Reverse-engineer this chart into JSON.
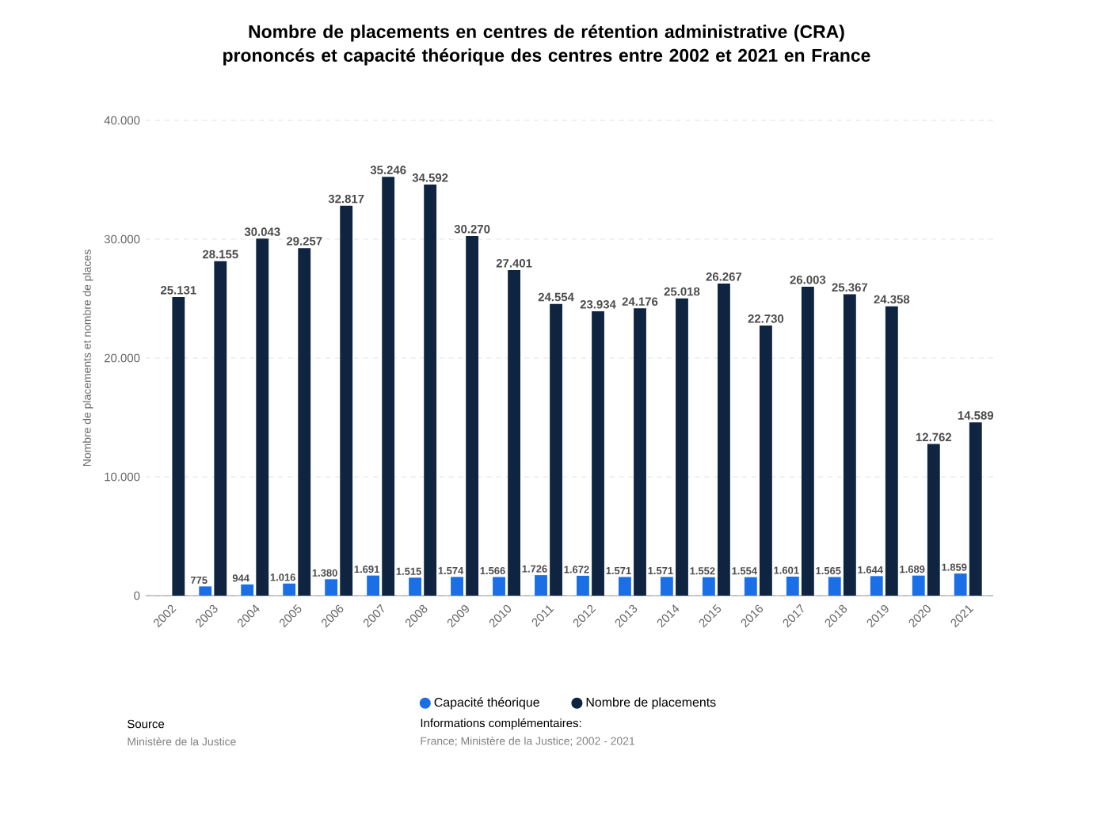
{
  "chart_data": {
    "type": "bar",
    "title": "Nombre de placements en centres de rétention administrative (CRA) prononcés et capacité théorique des centres entre 2002 et 2021 en France",
    "ylabel": "Nombre de placements et nombre de places",
    "categories": [
      "2002",
      "2003",
      "2004",
      "2005",
      "2006",
      "2007",
      "2008",
      "2009",
      "2010",
      "2011",
      "2012",
      "2013",
      "2014",
      "2015",
      "2016",
      "2017",
      "2018",
      "2019",
      "2020",
      "2021"
    ],
    "series": [
      {
        "name": "Capacité théorique",
        "color": "#1a6ee6",
        "values": [
          null,
          775,
          944,
          1016,
          1380,
          1691,
          1515,
          1574,
          1566,
          1726,
          1672,
          1571,
          1571,
          1552,
          1554,
          1601,
          1565,
          1644,
          1689,
          1859
        ],
        "value_labels": [
          null,
          "775",
          "944",
          "1.016",
          "1.380",
          "1.691",
          "1.515",
          "1.574",
          "1.566",
          "1.726",
          "1.672",
          "1.571",
          "1.571",
          "1.552",
          "1.554",
          "1.601",
          "1.565",
          "1.644",
          "1.689",
          "1.859"
        ]
      },
      {
        "name": "Nombre de placements",
        "color": "#0e2440",
        "values": [
          25131,
          28155,
          30043,
          29257,
          32817,
          35246,
          34592,
          30270,
          27401,
          24554,
          23934,
          24176,
          25018,
          26267,
          22730,
          26003,
          25367,
          24358,
          12762,
          14589
        ],
        "value_labels": [
          "25.131",
          "28.155",
          "30.043",
          "29.257",
          "32.817",
          "35.246",
          "34.592",
          "30.270",
          "27.401",
          "24.554",
          "23.934",
          "24.176",
          "25.018",
          "26.267",
          "22.730",
          "26.003",
          "25.367",
          "24.358",
          "12.762",
          "14.589"
        ]
      }
    ],
    "ylim": [
      0,
      40000
    ],
    "yticks": [
      0,
      {
        "value": 10000,
        "label": "10.000"
      },
      {
        "value": 20000,
        "label": "20.000"
      },
      {
        "value": 30000,
        "label": "30.000"
      },
      {
        "value": 40000,
        "label": "40.000"
      }
    ],
    "grid": "y",
    "legend": "bottom",
    "annotations": [
      "Source",
      "Ministère de la Justice",
      "Informations complémentaires:",
      "France; Ministère de la Justice; 2002 - 2021"
    ]
  }
}
